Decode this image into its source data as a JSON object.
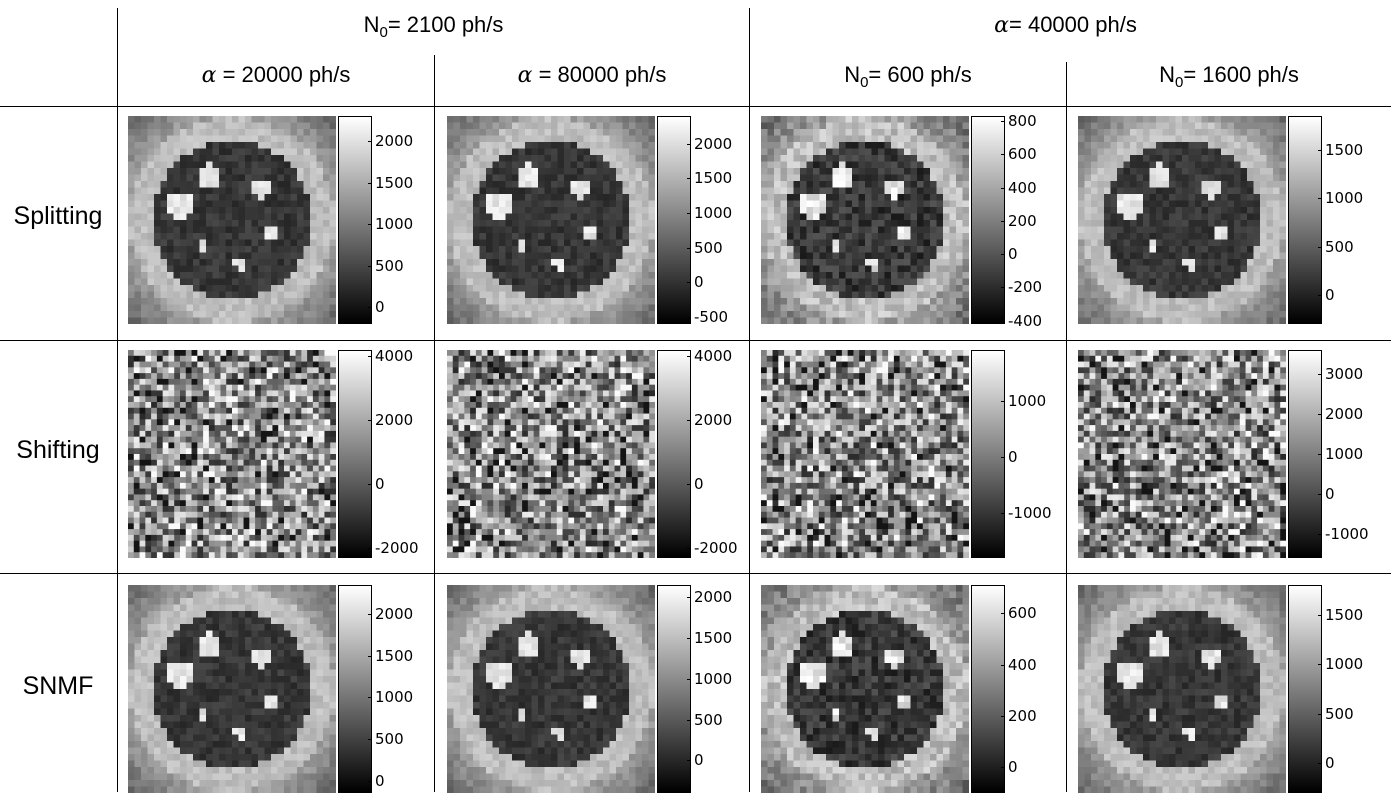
{
  "column_groups": [
    {
      "label_pre": "N",
      "label_sub": "0",
      "label_post": "= 2100 ph/s"
    },
    {
      "label_pre": "α",
      "label_sub": "",
      "label_post": "= 40000 ph/s"
    }
  ],
  "columns": [
    {
      "label_pre": "α",
      "label_sub": "",
      "label_post": " = 20000 ph/s"
    },
    {
      "label_pre": "α",
      "label_sub": "",
      "label_post": " = 80000 ph/s"
    },
    {
      "label_pre": "N",
      "label_sub": "0",
      "label_post": "= 600 ph/s"
    },
    {
      "label_pre": "N",
      "label_sub": "0",
      "label_post": "= 1600 ph/s"
    }
  ],
  "rows": [
    {
      "label": "Splitting",
      "image_type": "phantom",
      "colorbars": [
        {
          "range": [
            -200,
            2300
          ],
          "ticks": [
            "2000",
            "1500",
            "1000",
            "500",
            "0"
          ]
        },
        {
          "range": [
            -600,
            2400
          ],
          "ticks": [
            "2000",
            "1500",
            "1000",
            "500",
            "0",
            "-500"
          ]
        },
        {
          "range": [
            -420,
            830
          ],
          "ticks": [
            "800",
            "600",
            "400",
            "200",
            "0",
            "-200",
            "-400"
          ]
        },
        {
          "range": [
            -300,
            1850
          ],
          "ticks": [
            "1500",
            "1000",
            "500",
            "0"
          ]
        }
      ]
    },
    {
      "label": "Shifting",
      "image_type": "noise",
      "colorbars": [
        {
          "range": [
            -2300,
            4200
          ],
          "ticks": [
            "4000",
            "2000",
            "0",
            "-2000"
          ]
        },
        {
          "range": [
            -2300,
            4200
          ],
          "ticks": [
            "4000",
            "2000",
            "0",
            "-2000"
          ]
        },
        {
          "range": [
            -1800,
            1900
          ],
          "ticks": [
            "1000",
            "0",
            "-1000"
          ]
        },
        {
          "range": [
            -1600,
            3600
          ],
          "ticks": [
            "3000",
            "2000",
            "1000",
            "0",
            "-1000"
          ]
        }
      ]
    },
    {
      "label": "SNMF",
      "image_type": "phantom",
      "colorbars": [
        {
          "range": [
            -150,
            2350
          ],
          "ticks": [
            "2000",
            "1500",
            "1000",
            "500",
            "0"
          ]
        },
        {
          "range": [
            -400,
            2150
          ],
          "ticks": [
            "2000",
            "1500",
            "1000",
            "500",
            "0"
          ]
        },
        {
          "range": [
            -100,
            710
          ],
          "ticks": [
            "600",
            "400",
            "200",
            "0"
          ]
        },
        {
          "range": [
            -300,
            1800
          ],
          "ticks": [
            "1500",
            "1000",
            "500",
            "0"
          ]
        }
      ]
    }
  ]
}
